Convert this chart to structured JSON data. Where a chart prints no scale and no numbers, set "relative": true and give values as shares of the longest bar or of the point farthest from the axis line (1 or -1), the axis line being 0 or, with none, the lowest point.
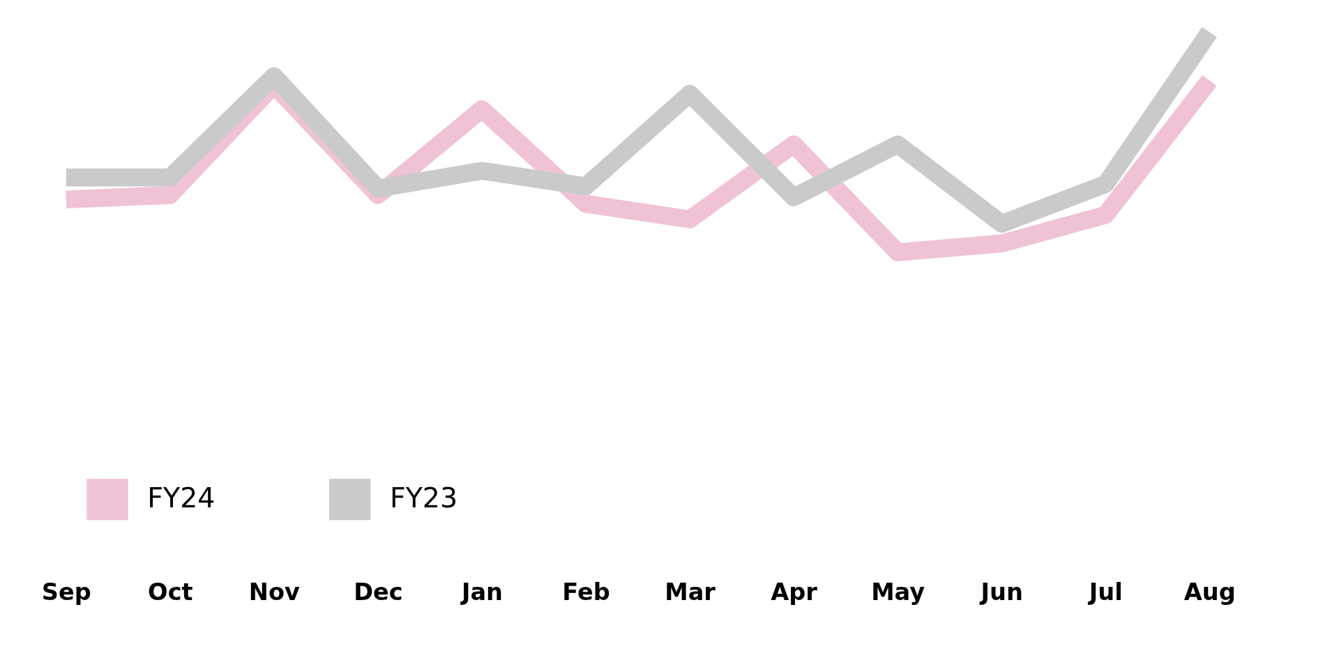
{
  "chart_data": {
    "type": "line",
    "relative": true,
    "categories": [
      "Sep",
      "Oct",
      "Nov",
      "Dec",
      "Jan",
      "Feb",
      "Mar",
      "Apr",
      "May",
      "Jun",
      "Jul",
      "Aug"
    ],
    "series": [
      {
        "name": "FY24",
        "color": "#f0c2d6",
        "values": [
          0.24,
          0.26,
          0.76,
          0.26,
          0.65,
          0.22,
          0.15,
          0.49,
          0,
          0.04,
          0.17,
          0.78
        ]
      },
      {
        "name": "FY23",
        "color": "#cacaca",
        "values": [
          0.34,
          0.34,
          0.8,
          0.29,
          0.37,
          0.3,
          0.72,
          0.25,
          0.49,
          0.13,
          0.31,
          1.0
        ]
      }
    ],
    "legend": "bottom left",
    "grid": false,
    "marker": "none",
    "line_style": "solid"
  }
}
